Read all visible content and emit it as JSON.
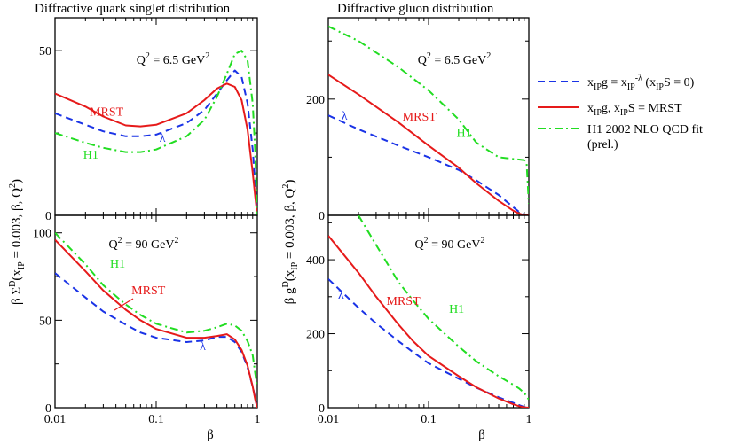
{
  "figure_titles": {
    "left": "Diffractive quark singlet distribution",
    "right": "Diffractive gluon distribution"
  },
  "axis_labels": {
    "x": "β",
    "y_left": "β Σ^D(x_IP = 0.003, β, Q^2)",
    "y_right": "β g^D(x_IP = 0.003, β, Q^2)"
  },
  "legend": {
    "placement": "right",
    "entries": [
      {
        "key": "lambda",
        "color": "#1a33e6",
        "dash": "dashed",
        "label": "x_IP g = x_IP^-λ (x_IP S = 0)"
      },
      {
        "key": "mrst",
        "color": "#e61a1a",
        "dash": "solid",
        "label": "x_IP g, x_IP S = MRST"
      },
      {
        "key": "h1",
        "color": "#22dd22",
        "dash": "dashdot",
        "label_lines": [
          "H1 2002 NLO QCD fit",
          "(prel.)"
        ]
      }
    ]
  },
  "series_colors": {
    "lambda": "#1a33e6",
    "mrst": "#e61a1a",
    "h1": "#22dd22"
  },
  "chart_data": [
    {
      "id": "quark_q2_6_5",
      "type": "line",
      "q2_label": "Q^2 = 6.5 GeV^2",
      "x_scale": "log",
      "xlim": [
        0.01,
        1
      ],
      "x_ticks": [
        0.01,
        0.1,
        1
      ],
      "x_ticklabels": [
        "",
        "",
        ""
      ],
      "ylim": [
        0,
        60
      ],
      "y_ticks": [
        0,
        50
      ],
      "y_ticklabels": [
        "0",
        "50"
      ],
      "series": [
        {
          "key": "lambda",
          "x": [
            0.01,
            0.02,
            0.03,
            0.05,
            0.07,
            0.1,
            0.2,
            0.3,
            0.4,
            0.5,
            0.6,
            0.7,
            0.8,
            0.9,
            0.95,
            1.0
          ],
          "y": [
            31,
            27.5,
            25.5,
            24,
            24,
            24.5,
            28,
            32,
            37,
            41,
            44,
            42,
            34,
            20,
            10,
            0
          ]
        },
        {
          "key": "mrst",
          "x": [
            0.01,
            0.02,
            0.03,
            0.05,
            0.07,
            0.1,
            0.2,
            0.3,
            0.4,
            0.5,
            0.6,
            0.7,
            0.8,
            0.9,
            0.95,
            1.0
          ],
          "y": [
            37,
            33,
            30,
            27.3,
            27,
            27.5,
            31,
            35,
            38.5,
            40,
            39,
            35,
            26,
            13,
            6,
            0
          ]
        },
        {
          "key": "h1",
          "x": [
            0.01,
            0.02,
            0.03,
            0.05,
            0.07,
            0.1,
            0.2,
            0.3,
            0.4,
            0.5,
            0.6,
            0.7,
            0.8,
            0.9,
            0.95,
            1.0
          ],
          "y": [
            25,
            22,
            20.5,
            19.2,
            19.2,
            20,
            24,
            29,
            36,
            43,
            49,
            50,
            47,
            34,
            20,
            0
          ]
        }
      ],
      "annotations": [
        {
          "text": "MRST",
          "series": "mrst",
          "at": [
            0.022,
            30.3
          ]
        },
        {
          "text": "λ",
          "series": "lambda",
          "at": [
            0.108,
            22.3
          ]
        },
        {
          "text": "H1",
          "series": "h1",
          "at": [
            0.019,
            17.2
          ]
        }
      ]
    },
    {
      "id": "gluon_q2_6_5",
      "type": "line",
      "q2_label": "Q^2 = 6.5 GeV^2",
      "x_scale": "log",
      "xlim": [
        0.01,
        1
      ],
      "x_ticks": [
        0.01,
        0.1,
        1
      ],
      "x_ticklabels": [
        "",
        "",
        ""
      ],
      "ylim": [
        0,
        340
      ],
      "y_ticks": [
        0,
        200
      ],
      "y_ticklabels": [
        "0",
        "200"
      ],
      "series": [
        {
          "key": "lambda",
          "x": [
            0.01,
            0.02,
            0.05,
            0.1,
            0.2,
            0.3,
            0.5,
            0.7,
            0.8,
            0.9,
            1.0
          ],
          "y": [
            172,
            148,
            120,
            100,
            78,
            60,
            35,
            14,
            6,
            1,
            0
          ]
        },
        {
          "key": "mrst",
          "x": [
            0.01,
            0.02,
            0.05,
            0.1,
            0.2,
            0.3,
            0.5,
            0.7,
            0.8,
            0.9,
            1.0
          ],
          "y": [
            242,
            208,
            160,
            120,
            82,
            55,
            25,
            8,
            3,
            0.5,
            0
          ]
        },
        {
          "key": "h1",
          "x": [
            0.01,
            0.02,
            0.05,
            0.1,
            0.2,
            0.3,
            0.5,
            0.7,
            0.8,
            0.9,
            0.95,
            1.0
          ],
          "y": [
            325,
            300,
            255,
            215,
            165,
            125,
            100,
            97,
            96,
            95,
            90,
            20
          ]
        }
      ],
      "annotations": [
        {
          "text": "λ",
          "series": "lambda",
          "at": [
            0.0135,
            165
          ]
        },
        {
          "text": "MRST",
          "series": "mrst",
          "at": [
            0.055,
            163
          ]
        },
        {
          "text": "H1",
          "series": "h1",
          "at": [
            0.19,
            135
          ]
        }
      ]
    },
    {
      "id": "quark_q2_90",
      "type": "line",
      "q2_label": "Q^2 = 90 GeV^2",
      "x_scale": "log",
      "xlim": [
        0.01,
        1
      ],
      "x_ticks": [
        0.01,
        0.1,
        1
      ],
      "x_ticklabels": [
        "0.01",
        "0.1",
        "1"
      ],
      "ylim": [
        0,
        110
      ],
      "y_ticks": [
        0,
        50,
        100
      ],
      "y_ticklabels": [
        "0",
        "50",
        "100"
      ],
      "series": [
        {
          "key": "lambda",
          "x": [
            0.01,
            0.02,
            0.03,
            0.05,
            0.07,
            0.1,
            0.2,
            0.3,
            0.4,
            0.5,
            0.6,
            0.7,
            0.8,
            0.9,
            0.95,
            1.0
          ],
          "y": [
            77,
            63,
            55,
            47.5,
            43,
            40,
            37.5,
            38.5,
            40.5,
            40.5,
            37.5,
            32,
            23,
            12,
            6,
            0
          ]
        },
        {
          "key": "mrst",
          "x": [
            0.01,
            0.02,
            0.03,
            0.05,
            0.07,
            0.1,
            0.2,
            0.3,
            0.4,
            0.5,
            0.6,
            0.7,
            0.8,
            0.9,
            0.95,
            1.0
          ],
          "y": [
            96,
            78,
            67,
            56,
            50,
            45,
            40,
            40,
            41,
            42,
            39,
            33,
            24,
            12,
            5,
            0
          ]
        },
        {
          "key": "h1",
          "x": [
            0.01,
            0.02,
            0.03,
            0.05,
            0.07,
            0.1,
            0.2,
            0.3,
            0.4,
            0.5,
            0.6,
            0.7,
            0.8,
            0.9,
            0.95,
            1.0
          ],
          "y": [
            100,
            82,
            70,
            59,
            53,
            48,
            43,
            44,
            46,
            48,
            47,
            44,
            38,
            30,
            20,
            12
          ]
        }
      ],
      "annotations": [
        {
          "text": "H1",
          "series": "h1",
          "at": [
            0.035,
            80
          ]
        },
        {
          "text": "MRST",
          "series": "mrst",
          "at": [
            0.057,
            65
          ]
        },
        {
          "text": "λ",
          "series": "lambda",
          "at": [
            0.27,
            33
          ]
        }
      ]
    },
    {
      "id": "gluon_q2_90",
      "type": "line",
      "q2_label": "Q^2 = 90 GeV^2",
      "x_scale": "log",
      "xlim": [
        0.01,
        1
      ],
      "x_ticks": [
        0.01,
        0.1,
        1
      ],
      "x_ticklabels": [
        "0.01",
        "0.1",
        "1"
      ],
      "ylim": [
        0,
        520
      ],
      "y_ticks": [
        0,
        200,
        400
      ],
      "y_ticklabels": [
        "0",
        "200",
        "400"
      ],
      "series": [
        {
          "key": "lambda",
          "x": [
            0.01,
            0.02,
            0.03,
            0.05,
            0.07,
            0.1,
            0.2,
            0.3,
            0.5,
            0.7,
            0.8,
            0.9,
            1.0
          ],
          "y": [
            348,
            270,
            228,
            180,
            150,
            120,
            78,
            54,
            28,
            13,
            7,
            2,
            0
          ]
        },
        {
          "key": "mrst",
          "x": [
            0.01,
            0.02,
            0.03,
            0.05,
            0.07,
            0.1,
            0.2,
            0.3,
            0.5,
            0.7,
            0.8,
            0.9,
            1.0
          ],
          "y": [
            465,
            365,
            300,
            225,
            180,
            140,
            85,
            55,
            25,
            9,
            4,
            1,
            0
          ]
        },
        {
          "key": "h1",
          "x": [
            0.02,
            0.03,
            0.05,
            0.07,
            0.1,
            0.2,
            0.3,
            0.5,
            0.7,
            0.8,
            0.9,
            1.0
          ],
          "y": [
            520,
            440,
            340,
            290,
            240,
            165,
            125,
            85,
            62,
            52,
            40,
            22
          ]
        }
      ],
      "annotations": [
        {
          "text": "λ",
          "series": "lambda",
          "at": [
            0.0125,
            295
          ]
        },
        {
          "text": "MRST",
          "series": "mrst",
          "at": [
            0.038,
            278
          ]
        },
        {
          "text": "H1",
          "series": "h1",
          "at": [
            0.16,
            256
          ]
        }
      ]
    }
  ]
}
